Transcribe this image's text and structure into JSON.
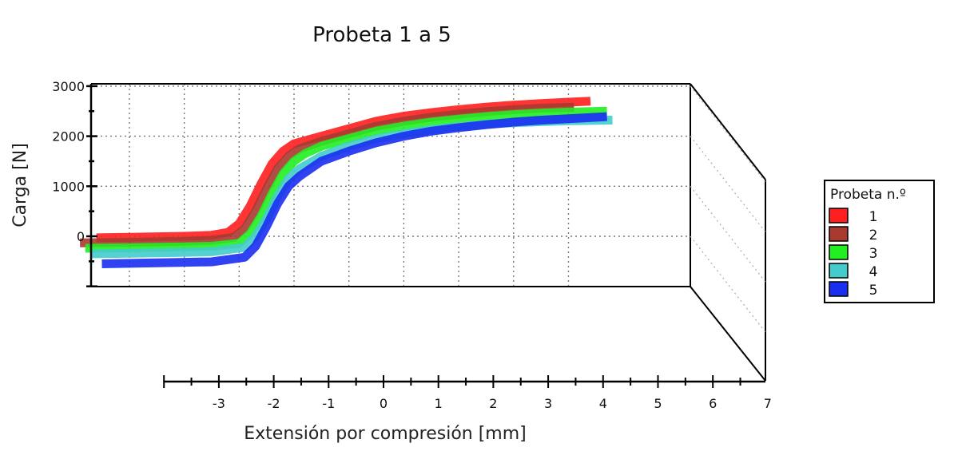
{
  "chart_data": {
    "type": "line",
    "title": "Probeta 1 a 5",
    "xlabel": "Extensión por compresión [mm]",
    "ylabel": "Carga [N]",
    "xlim": [
      -4,
      7
    ],
    "ylim": [
      -1000,
      3000
    ],
    "x_ticks": [
      "-3",
      "-2",
      "-1",
      "0",
      "1",
      "2",
      "3",
      "4",
      "5",
      "6",
      "7"
    ],
    "y_ticks": [
      "3000",
      "2000",
      "1000",
      "0"
    ],
    "y_tick_values": [
      3000,
      2000,
      1000,
      0
    ],
    "grid": true,
    "legend": {
      "title": "Probeta n.º",
      "position": "right"
    },
    "series": [
      {
        "name": "1",
        "color": "#ff1f1f",
        "x": [
          -3.6,
          -3.0,
          -2.5,
          -2.0,
          -1.5,
          -1.2,
          -1.0,
          -0.8,
          -0.6,
          -0.4,
          -0.2,
          0.0,
          0.5,
          1.0,
          1.5,
          2.0,
          2.5,
          3.0,
          3.5,
          4.0,
          4.5,
          5.0,
          5.4
        ],
        "y": [
          -30,
          -20,
          -10,
          0,
          20,
          80,
          250,
          600,
          1050,
          1450,
          1700,
          1850,
          2000,
          2150,
          2300,
          2400,
          2470,
          2530,
          2580,
          2620,
          2650,
          2680,
          2700
        ]
      },
      {
        "name": "2",
        "color": "#a83a30",
        "x": [
          -3.9,
          -3.0,
          -2.5,
          -2.0,
          -1.5,
          -1.1,
          -0.9,
          -0.7,
          -0.5,
          -0.3,
          -0.1,
          0.1,
          0.5,
          1.0,
          1.5,
          2.0,
          2.5,
          3.0,
          3.5,
          4.0,
          4.5,
          5.1
        ],
        "y": [
          -130,
          -120,
          -110,
          -100,
          -80,
          -20,
          150,
          500,
          950,
          1350,
          1600,
          1750,
          1900,
          2050,
          2200,
          2300,
          2380,
          2440,
          2490,
          2530,
          2560,
          2580
        ]
      },
      {
        "name": "3",
        "color": "#22ee22",
        "x": [
          -3.8,
          -3.0,
          -2.5,
          -2.0,
          -1.5,
          -1.0,
          -0.8,
          -0.6,
          -0.4,
          -0.2,
          0.0,
          0.2,
          0.5,
          1.0,
          1.5,
          2.0,
          2.5,
          3.0,
          3.5,
          4.0,
          4.5,
          5.0,
          5.7
        ],
        "y": [
          -240,
          -230,
          -220,
          -210,
          -200,
          -140,
          50,
          400,
          850,
          1250,
          1500,
          1650,
          1800,
          1950,
          2100,
          2200,
          2280,
          2340,
          2390,
          2430,
          2460,
          2480,
          2500
        ]
      },
      {
        "name": "4",
        "color": "#44cccc",
        "x": [
          -3.7,
          -3.0,
          -2.5,
          -2.0,
          -1.5,
          -0.9,
          -0.7,
          -0.5,
          -0.3,
          -0.1,
          0.1,
          0.5,
          1.0,
          1.5,
          2.0,
          2.5,
          3.0,
          3.5,
          4.0,
          4.5,
          5.0,
          5.8
        ],
        "y": [
          -350,
          -340,
          -330,
          -320,
          -310,
          -220,
          0,
          350,
          800,
          1150,
          1350,
          1600,
          1800,
          1950,
          2050,
          2130,
          2190,
          2240,
          2270,
          2290,
          2310,
          2320
        ]
      },
      {
        "name": "5",
        "color": "#1a2ef0",
        "x": [
          -3.5,
          -3.0,
          -2.5,
          -2.0,
          -1.5,
          -0.9,
          -0.7,
          -0.5,
          -0.3,
          -0.1,
          0.1,
          0.5,
          1.0,
          1.5,
          2.0,
          2.5,
          3.0,
          3.5,
          4.0,
          4.5,
          5.0,
          5.7
        ],
        "y": [
          -550,
          -540,
          -530,
          -520,
          -510,
          -420,
          -200,
          200,
          650,
          1000,
          1200,
          1500,
          1700,
          1870,
          2000,
          2100,
          2170,
          2230,
          2280,
          2320,
          2350,
          2390
        ]
      }
    ]
  }
}
